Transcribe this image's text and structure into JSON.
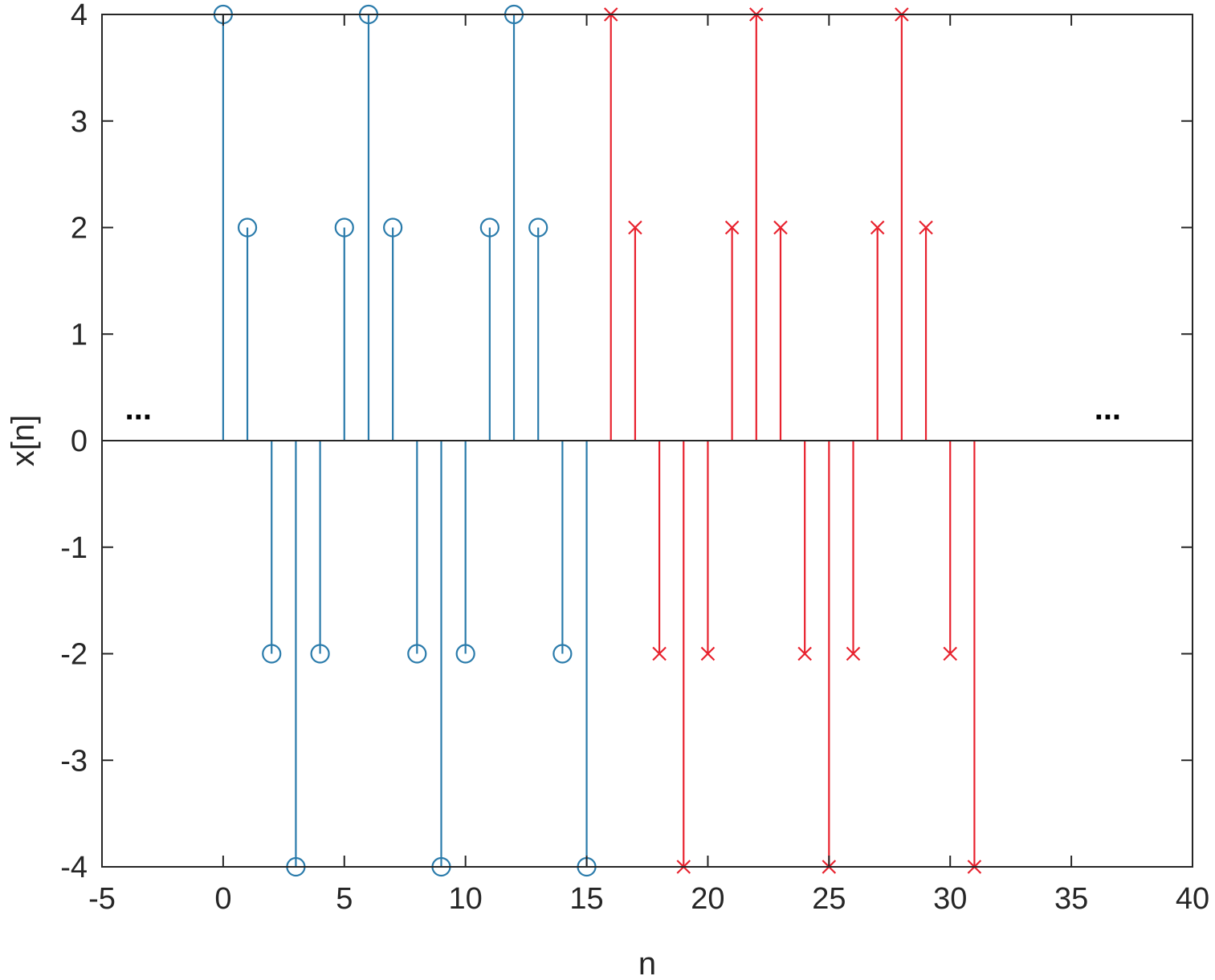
{
  "chart_data": {
    "type": "stem",
    "xlabel": "n",
    "ylabel": "x[n]",
    "xlim": [
      -5,
      40
    ],
    "ylim": [
      -4,
      4
    ],
    "xticks": [
      -5,
      0,
      5,
      10,
      15,
      20,
      25,
      30,
      35,
      40
    ],
    "yticks": [
      -4,
      -3,
      -2,
      -1,
      0,
      1,
      2,
      3,
      4
    ],
    "grid": false,
    "baseline": 0,
    "series": [
      {
        "marker": "circle",
        "color": "#2a7bab",
        "x": [
          0,
          1,
          2,
          3,
          4,
          5,
          6,
          7,
          8,
          9,
          10,
          11,
          12,
          13,
          14,
          15
        ],
        "values": [
          4,
          2,
          -2,
          -4,
          -2,
          2,
          4,
          2,
          -2,
          -4,
          -2,
          2,
          4,
          2,
          -2,
          -4
        ]
      },
      {
        "marker": "x",
        "color": "#e8222e",
        "x": [
          16,
          17,
          18,
          19,
          20,
          21,
          22,
          23,
          24,
          25,
          26,
          27,
          28,
          29,
          30,
          31
        ],
        "values": [
          4,
          2,
          -2,
          -4,
          -2,
          2,
          4,
          2,
          -2,
          -4,
          -2,
          2,
          4,
          2,
          -2,
          -4
        ]
      }
    ],
    "annotations": [
      {
        "text": "...",
        "x": -3.5,
        "y": 0.2
      },
      {
        "text": "...",
        "x": 36.5,
        "y": 0.2
      }
    ]
  }
}
